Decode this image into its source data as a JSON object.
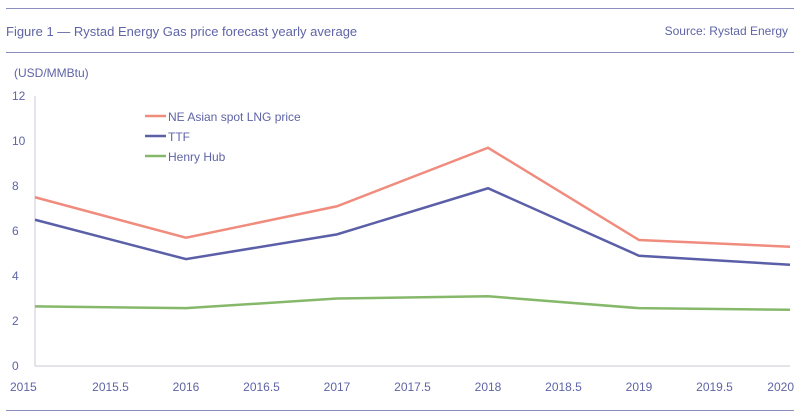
{
  "chart_data": {
    "type": "line",
    "title": "Figure 1 — Rystad Energy Gas price forecast yearly average",
    "source": "Source: Rystad Energy",
    "ylabel": "(USD/MMBtu)",
    "xlabel": "",
    "x": [
      2015,
      2016,
      2017,
      2018,
      2019,
      2020
    ],
    "xticks": [
      "2015",
      "2015.5",
      "2016",
      "2016.5",
      "2017",
      "2017.5",
      "2018",
      "2018.5",
      "2019",
      "2019.5",
      "2020"
    ],
    "yticks": [
      "0",
      "2",
      "4",
      "6",
      "8",
      "10",
      "12"
    ],
    "xlim": [
      2015,
      2020
    ],
    "ylim": [
      0,
      12
    ],
    "grid": false,
    "legend_position": "top-left",
    "series": [
      {
        "name": "NE Asian spot LNG price",
        "color": "#f08c7e",
        "values": [
          7.5,
          5.7,
          7.1,
          9.7,
          5.6,
          5.3
        ]
      },
      {
        "name": "TTF",
        "color": "#5a5fa8",
        "values": [
          6.5,
          4.75,
          5.85,
          7.9,
          4.9,
          4.5
        ]
      },
      {
        "name": "Henry Hub",
        "color": "#86b86a",
        "values": [
          2.65,
          2.57,
          3.0,
          3.1,
          2.57,
          2.5
        ]
      }
    ]
  }
}
